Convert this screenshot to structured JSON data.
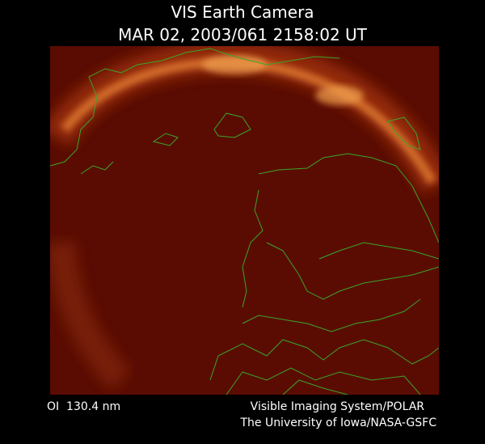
{
  "header": {
    "title": "VIS Earth Camera",
    "subtitle": "MAR 02, 2003/061 2158:02 UT"
  },
  "footer": {
    "filter": "OI  130.4 nm",
    "credit_line_1": "Visible Imaging System/POLAR",
    "credit_line_2": "The University of Iowa/NASA-GSFC"
  }
}
